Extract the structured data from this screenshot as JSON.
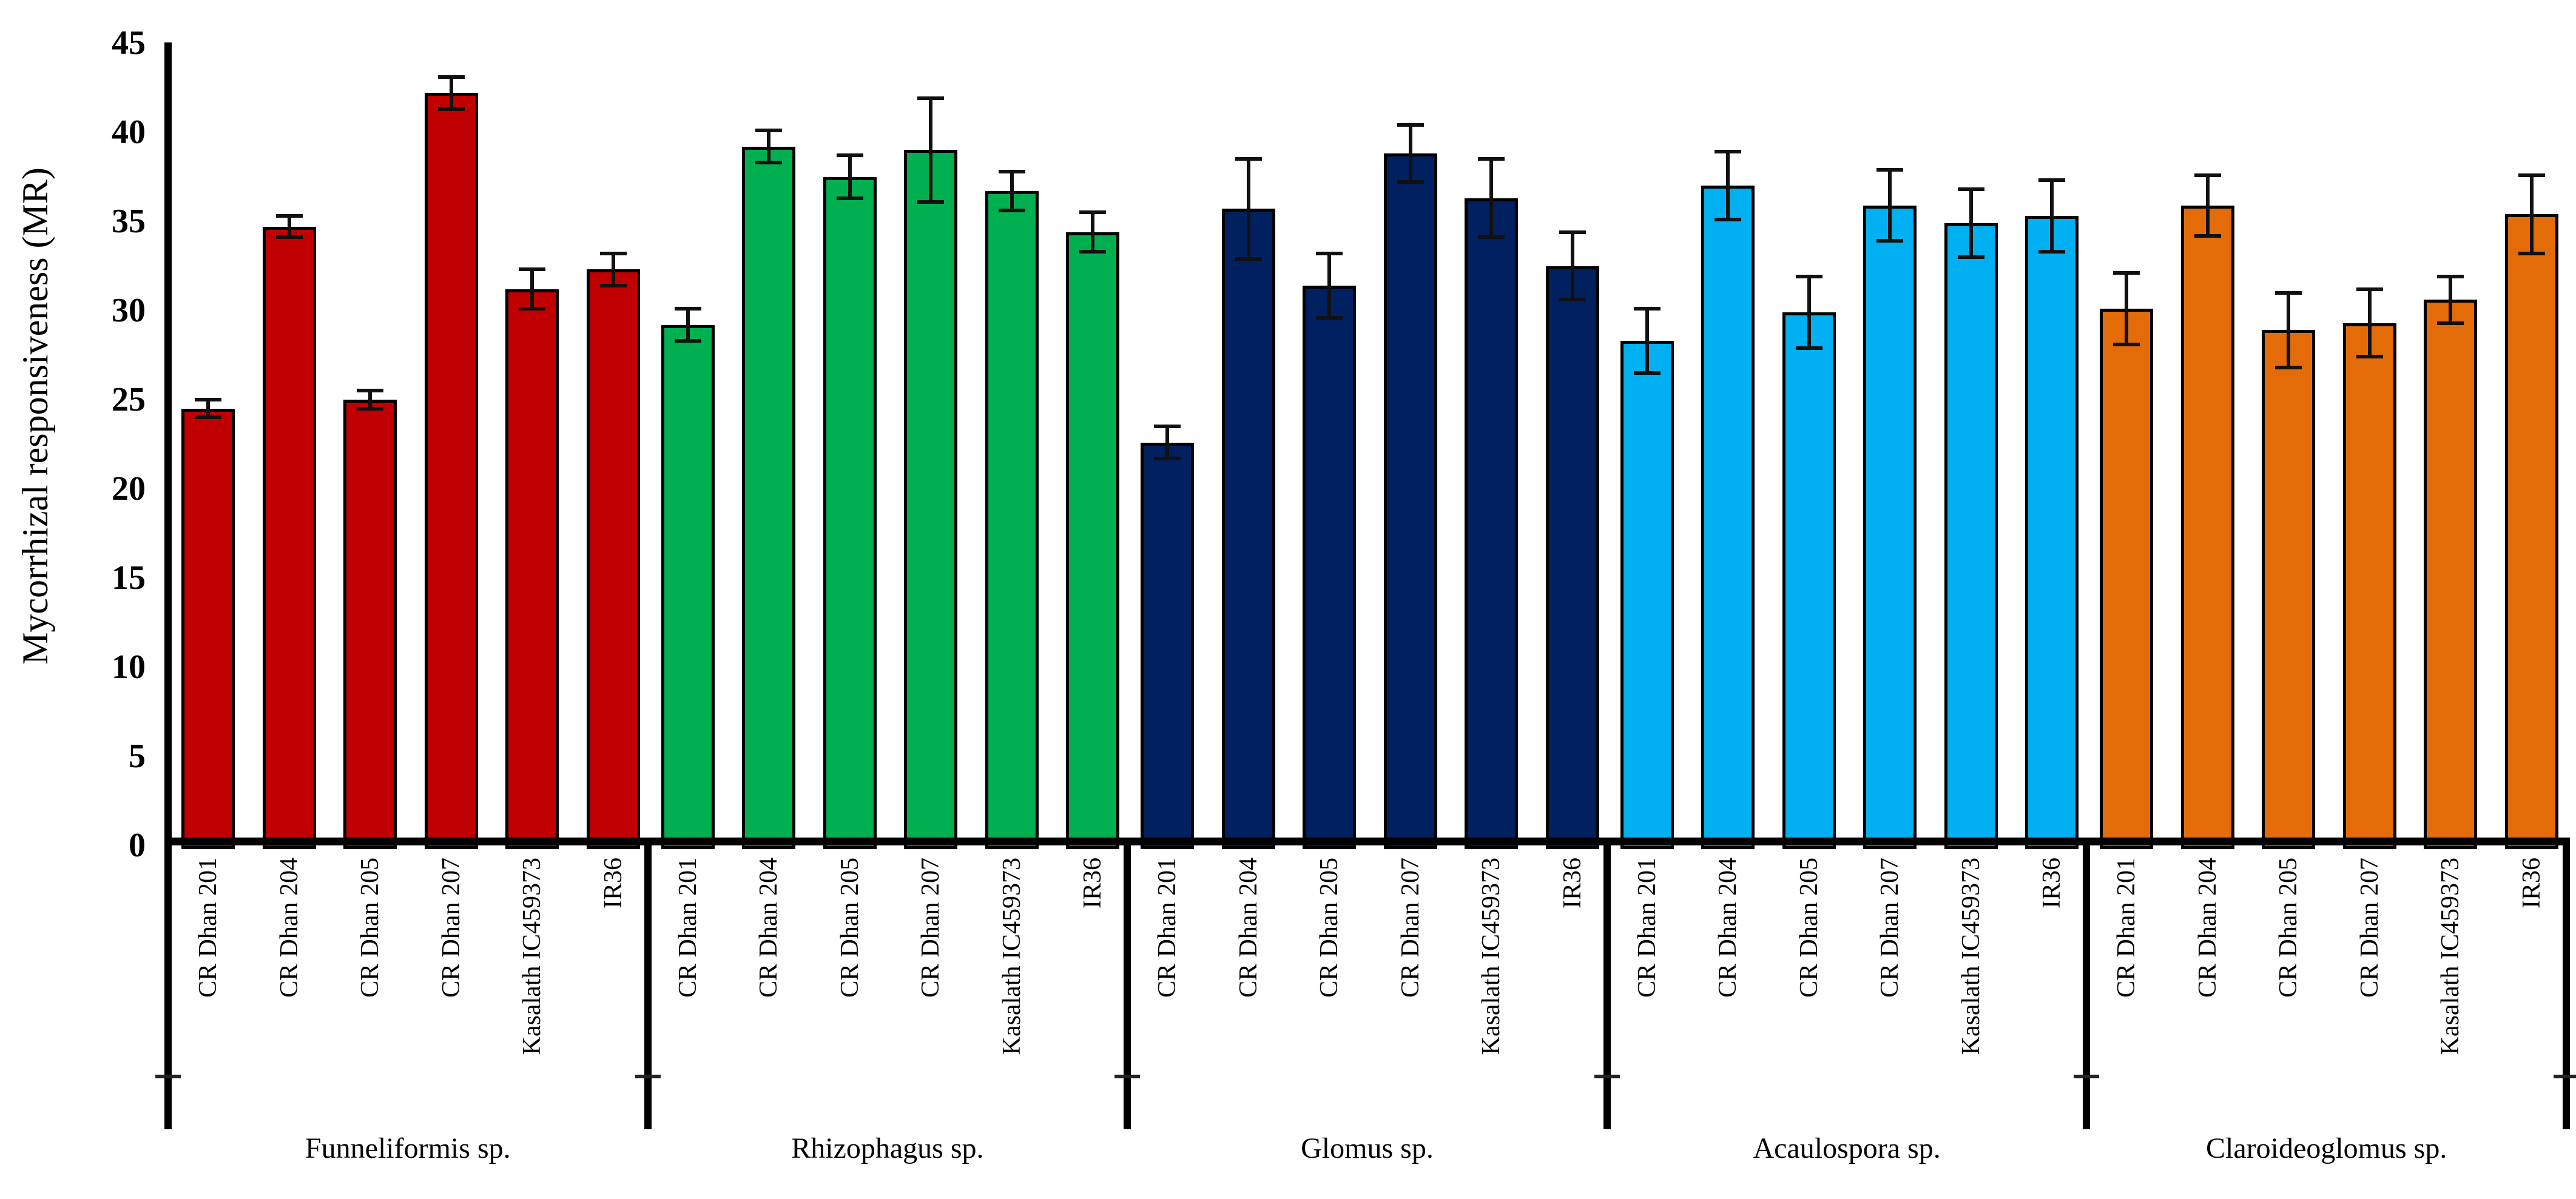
{
  "figure": {
    "background": "#FFFFFF",
    "text_color": "#000000"
  },
  "chart_data": {
    "type": "bar",
    "title": "",
    "ylabel": "Mycorrhizal responsiveness (MR)",
    "xlabel": "",
    "ylim": [
      0,
      45
    ],
    "yticks": [
      0,
      5,
      10,
      15,
      20,
      25,
      30,
      35,
      40,
      45
    ],
    "grid": false,
    "legend": "none",
    "error_bars": true,
    "bar_border_color": "#000000",
    "categories": [
      "CR Dhan 201",
      "CR Dhan 204",
      "CR Dhan 205",
      "CR Dhan 207",
      "Kasalath IC459373",
      "IR36"
    ],
    "series": [
      {
        "name": "Funneliformis sp.",
        "color": "#C00000",
        "values": [
          24.5,
          34.7,
          25.0,
          42.2,
          31.2,
          32.3
        ],
        "errors": [
          0.5,
          0.6,
          0.5,
          0.9,
          1.1,
          0.9
        ]
      },
      {
        "name": "Rhizophagus sp.",
        "color": "#00B050",
        "values": [
          29.2,
          39.2,
          37.5,
          39.0,
          36.7,
          34.4
        ],
        "errors": [
          0.9,
          0.9,
          1.2,
          2.9,
          1.1,
          1.1
        ]
      },
      {
        "name": "Glomus sp.",
        "color": "#002060",
        "values": [
          22.6,
          35.7,
          31.4,
          38.8,
          36.3,
          32.5
        ],
        "errors": [
          0.9,
          2.8,
          1.8,
          1.6,
          2.2,
          1.9
        ]
      },
      {
        "name": "Acaulospora sp.",
        "color": "#00B0F0",
        "values": [
          28.3,
          37.0,
          29.9,
          35.9,
          34.9,
          35.3
        ],
        "errors": [
          1.8,
          1.9,
          2.0,
          2.0,
          1.9,
          2.0
        ]
      },
      {
        "name": "Claroideoglomus sp.",
        "color": "#E36C09",
        "values": [
          30.1,
          35.9,
          28.9,
          29.3,
          30.6,
          35.4
        ],
        "errors": [
          2.0,
          1.7,
          2.1,
          1.9,
          1.3,
          2.2
        ]
      }
    ]
  }
}
